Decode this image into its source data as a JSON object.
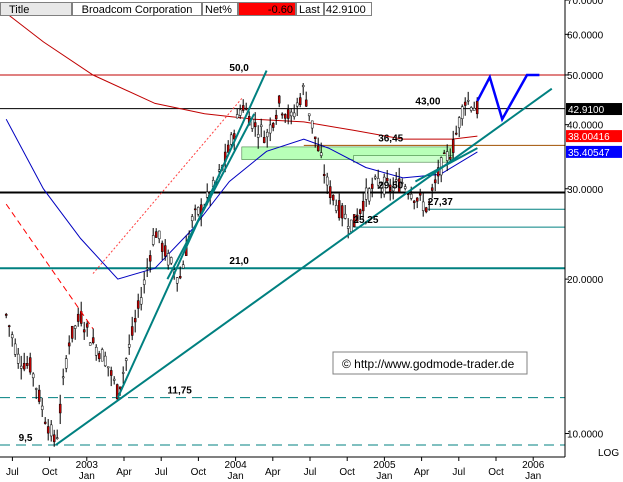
{
  "header": {
    "title_label": "Title",
    "company": "Broadcom Corporation",
    "net_label": "Net%",
    "net_value": "-0.60",
    "last_label": "Last",
    "last_value": "42.9100"
  },
  "watermark": "© http://www.godmode-trader.de",
  "chart_data": {
    "type": "candlestick",
    "scale": "log",
    "ylim": [
      9.0,
      70.0
    ],
    "y_ticks": [
      {
        "label": "70.0000",
        "value": 70
      },
      {
        "label": "60.0000",
        "value": 60
      },
      {
        "label": "50.0000",
        "value": 50
      },
      {
        "label": "40.0000",
        "value": 40
      },
      {
        "label": "30.0000",
        "value": 30
      },
      {
        "label": "20.0000",
        "value": 20
      },
      {
        "label": "10.0000",
        "value": 10
      }
    ],
    "y_axis_tag": "LOG",
    "x_range": [
      "2002-06",
      "2006-02"
    ],
    "x_ticks": [
      {
        "label": "Jul",
        "date": "2002-07"
      },
      {
        "label": "Oct",
        "date": "2002-10"
      },
      {
        "label": "2003",
        "sub": "Jan",
        "date": "2003-01"
      },
      {
        "label": "Apr",
        "date": "2003-04"
      },
      {
        "label": "Jul",
        "date": "2003-07"
      },
      {
        "label": "Oct",
        "date": "2003-10"
      },
      {
        "label": "2004",
        "sub": "Jan",
        "date": "2004-01"
      },
      {
        "label": "Apr",
        "date": "2004-04"
      },
      {
        "label": "Jul",
        "date": "2004-07"
      },
      {
        "label": "Oct",
        "date": "2004-10"
      },
      {
        "label": "2005",
        "sub": "Jan",
        "date": "2005-01"
      },
      {
        "label": "Apr",
        "date": "2005-04"
      },
      {
        "label": "Jul",
        "date": "2005-07"
      },
      {
        "label": "Oct",
        "date": "2005-10"
      },
      {
        "label": "2006",
        "sub": "Jan",
        "date": "2006-01"
      }
    ],
    "price_tags": [
      {
        "label": "42.9100",
        "value": 42.91,
        "bg": "#000000",
        "fg": "#ffffff"
      },
      {
        "label": "38.00416",
        "value": 38.0,
        "bg": "#ff0000",
        "fg": "#ffffff"
      },
      {
        "label": "35.40547",
        "value": 35.4,
        "bg": "#0000ff",
        "fg": "#ffffff"
      }
    ],
    "annotations": [
      {
        "text": "50,0",
        "date": "2003-12",
        "value": 50
      },
      {
        "text": "43,00",
        "date": "2005-03",
        "value": 43
      },
      {
        "text": "36,45",
        "date": "2004-12",
        "value": 36.45
      },
      {
        "text": "29,50",
        "date": "2004-12",
        "value": 29.5
      },
      {
        "text": "27,37",
        "date": "2005-04",
        "value": 27.37
      },
      {
        "text": "25,25",
        "date": "2004-10",
        "value": 25.25
      },
      {
        "text": "21,0",
        "date": "2003-12",
        "value": 21
      },
      {
        "text": "11,75",
        "date": "2003-07",
        "value": 11.75
      },
      {
        "text": "9,5",
        "date": "2002-07",
        "value": 9.5
      }
    ],
    "horizontal_lines": [
      {
        "value": 50,
        "color": "#c00000",
        "style": "solid"
      },
      {
        "value": 43,
        "color": "#000000",
        "style": "solid"
      },
      {
        "value": 36.45,
        "color": "#a05000",
        "style": "solid",
        "from": "2004-06"
      },
      {
        "value": 29.5,
        "color": "#000000",
        "style": "solid",
        "thick": true
      },
      {
        "value": 27.37,
        "color": "#008080",
        "style": "solid",
        "from": "2005-04"
      },
      {
        "value": 25.25,
        "color": "#008080",
        "style": "solid",
        "from": "2004-10"
      },
      {
        "value": 21,
        "color": "#008080",
        "style": "solid",
        "thick": true
      },
      {
        "value": 11.75,
        "color": "#008080",
        "style": "dashed"
      },
      {
        "value": 9.5,
        "color": "#008080",
        "style": "dashed"
      }
    ],
    "trend_lines": [
      {
        "name": "long-uptrend",
        "from": [
          "2002-10",
          9.5
        ],
        "to": [
          "2006-02",
          47
        ],
        "color": "#008080"
      },
      {
        "name": "steep-uptrend",
        "from": [
          "2003-03",
          11.75
        ],
        "to": [
          "2004-03",
          51
        ],
        "color": "#008080"
      },
      {
        "name": "medium-uptrend",
        "from": [
          "2003-07",
          20
        ],
        "to": [
          "2004-02",
          42
        ],
        "color": "#008080"
      },
      {
        "name": "dotted-channel",
        "from": [
          "2003-01",
          20.5
        ],
        "to": [
          "2004-01",
          45
        ],
        "color": "#ff4040",
        "dash": "2,2"
      },
      {
        "name": "red-dashed-decline",
        "from": [
          "2002-06",
          28
        ],
        "to": [
          "2003-01",
          16
        ],
        "color": "#ff0000",
        "dash": "6,4"
      },
      {
        "name": "short-channel-upper",
        "from": [
          "2005-03",
          31
        ],
        "to": [
          "2005-08",
          36
        ],
        "color": "#008080"
      }
    ],
    "zones": [
      {
        "from": "2004-01",
        "to": "2005-06",
        "low": 34.2,
        "high": 36.2,
        "color": "#b8ffb8"
      },
      {
        "from": "2004-10",
        "to": "2005-06",
        "low": 33.8,
        "high": 34.8,
        "color": "#ccffcc"
      }
    ],
    "projection": {
      "color": "#0000ff",
      "points": [
        [
          "2005-08",
          44.5
        ],
        [
          "2005-09",
          49.5
        ],
        [
          "2005-10",
          41
        ],
        [
          "2005-12",
          50
        ],
        [
          "2006-01",
          50
        ]
      ]
    },
    "moving_averages": [
      {
        "name": "MA-red",
        "color": "#c00000",
        "points": [
          [
            "2002-06",
            66
          ],
          [
            "2002-09",
            58
          ],
          [
            "2003-01",
            50
          ],
          [
            "2003-06",
            44
          ],
          [
            "2003-10",
            42
          ],
          [
            "2004-02",
            41
          ],
          [
            "2004-06",
            40.5
          ],
          [
            "2004-10",
            39
          ],
          [
            "2005-02",
            37.5
          ],
          [
            "2005-06",
            37.5
          ],
          [
            "2005-08",
            38.0
          ]
        ]
      },
      {
        "name": "MA-blue",
        "color": "#0000c0",
        "points": [
          [
            "2002-06",
            41
          ],
          [
            "2002-09",
            30
          ],
          [
            "2002-12",
            24
          ],
          [
            "2003-03",
            20
          ],
          [
            "2003-06",
            21
          ],
          [
            "2003-09",
            25
          ],
          [
            "2003-12",
            31
          ],
          [
            "2004-03",
            35.5
          ],
          [
            "2004-06",
            37.5
          ],
          [
            "2004-08",
            36
          ],
          [
            "2004-11",
            33
          ],
          [
            "2005-02",
            31.5
          ],
          [
            "2005-05",
            32
          ],
          [
            "2005-08",
            35.4
          ]
        ]
      }
    ],
    "price_path": [
      [
        "2002-06",
        17
      ],
      [
        "2002-07",
        14
      ],
      [
        "2002-08",
        13.5
      ],
      [
        "2002-09",
        11
      ],
      [
        "2002-10",
        9.5
      ],
      [
        "2002-11",
        15
      ],
      [
        "2002-12",
        17
      ],
      [
        "2003-01",
        15
      ],
      [
        "2003-02",
        14
      ],
      [
        "2003-03",
        12
      ],
      [
        "2003-04",
        15
      ],
      [
        "2003-05",
        19
      ],
      [
        "2003-06",
        25
      ],
      [
        "2003-07",
        22
      ],
      [
        "2003-08",
        20
      ],
      [
        "2003-09",
        26
      ],
      [
        "2003-10",
        28
      ],
      [
        "2003-11",
        31
      ],
      [
        "2003-12",
        36
      ],
      [
        "2004-01",
        44
      ],
      [
        "2004-02",
        40
      ],
      [
        "2004-03",
        38
      ],
      [
        "2004-04",
        44
      ],
      [
        "2004-05",
        41
      ],
      [
        "2004-06",
        47
      ],
      [
        "2004-07",
        37
      ],
      [
        "2004-08",
        30
      ],
      [
        "2004-09",
        27
      ],
      [
        "2004-10",
        25.5
      ],
      [
        "2004-11",
        29
      ],
      [
        "2004-12",
        31
      ],
      [
        "2005-01",
        30
      ],
      [
        "2005-02",
        31
      ],
      [
        "2005-03",
        29
      ],
      [
        "2005-04",
        27.4
      ],
      [
        "2005-05",
        33
      ],
      [
        "2005-06",
        36
      ],
      [
        "2005-07",
        45
      ],
      [
        "2005-08",
        42.9
      ]
    ]
  }
}
